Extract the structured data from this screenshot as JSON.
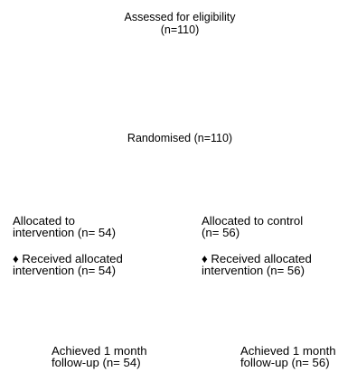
{
  "enrollment": {
    "line1": "Assessed for eligibility",
    "line2": "(n=110)"
  },
  "randomisation": {
    "label": "Randomised (n=110)"
  },
  "intervention_arm": {
    "allocated_line1": "Allocated to",
    "allocated_line2": "intervention (n= 54)",
    "received_line1": "♦ Received allocated",
    "received_line2": "intervention (n= 54)",
    "followup_line1": "Achieved 1 month",
    "followup_line2": "follow-up (n= 54)"
  },
  "control_arm": {
    "allocated_line1": "Allocated to control",
    "allocated_line2": "(n= 56)",
    "received_line1": "♦ Received allocated",
    "received_line2": "intervention (n= 56)",
    "followup_line1": "Achieved 1 month",
    "followup_line2": "follow-up (n= 56)"
  }
}
